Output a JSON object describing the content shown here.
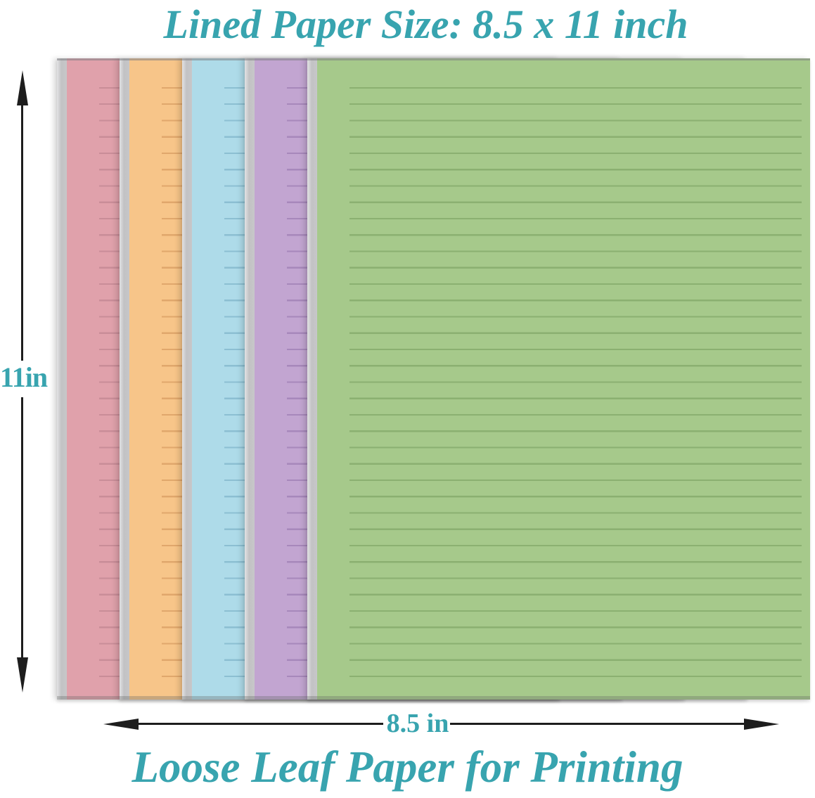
{
  "title": "Lined Paper Size: 8.5 x 11 inch",
  "caption": "Loose Leaf Paper for Printing",
  "dimension_labels": {
    "height": "11in",
    "width": "8.5 in"
  },
  "colors": {
    "accent": "#38a4af",
    "ink": "#1d1d1d",
    "binding_edge": "#c5c5c7"
  },
  "sheets": [
    {
      "name": "pink",
      "body": "#e0a1ab",
      "line": "#c98d98"
    },
    {
      "name": "orange",
      "body": "#f7c589",
      "line": "#e0a76c"
    },
    {
      "name": "blue",
      "body": "#aedbe9",
      "line": "#8cbfd2"
    },
    {
      "name": "purple",
      "body": "#c2a5d1",
      "line": "#a788bb"
    },
    {
      "name": "green",
      "body": "#a6c98b",
      "line": "#8bb071"
    }
  ]
}
